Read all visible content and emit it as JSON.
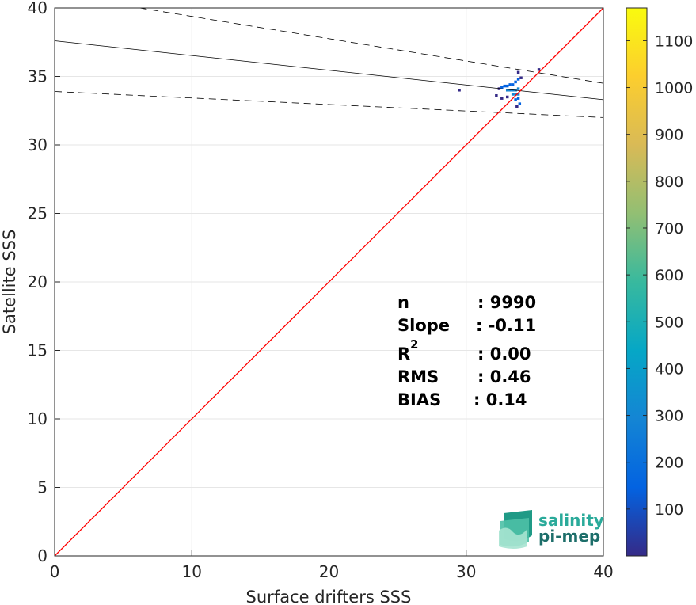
{
  "chart_data": {
    "type": "heatmap",
    "xlabel": "Surface drifters SSS",
    "ylabel": "Satellite SSS",
    "xlim": [
      0,
      40
    ],
    "ylim": [
      0,
      40
    ],
    "xticks": [
      "0",
      "10",
      "20",
      "30",
      "40"
    ],
    "yticks": [
      "0",
      "5",
      "10",
      "15",
      "20",
      "25",
      "30",
      "35",
      "40"
    ],
    "grid": true,
    "one_to_one_line": {
      "from": [
        0,
        0
      ],
      "to": [
        40,
        40
      ],
      "color": "#ff0000"
    },
    "regression_line": {
      "from": [
        0,
        37.6
      ],
      "to": [
        40,
        33.3
      ],
      "color": "#000000"
    },
    "confidence_bounds": [
      {
        "from": [
          6.2,
          40
        ],
        "to": [
          40,
          34.5
        ]
      },
      {
        "from": [
          0,
          33.9
        ],
        "to": [
          40,
          32.0
        ]
      }
    ],
    "density_cells": [
      {
        "x": 32.4,
        "y": 34.1,
        "count": 60
      },
      {
        "x": 32.6,
        "y": 34.2,
        "count": 80
      },
      {
        "x": 32.8,
        "y": 34.3,
        "count": 120
      },
      {
        "x": 33.0,
        "y": 34.3,
        "count": 150
      },
      {
        "x": 33.2,
        "y": 34.4,
        "count": 180
      },
      {
        "x": 33.4,
        "y": 34.4,
        "count": 200
      },
      {
        "x": 33.6,
        "y": 34.6,
        "count": 160
      },
      {
        "x": 33.8,
        "y": 34.8,
        "count": 120
      },
      {
        "x": 33.0,
        "y": 34.0,
        "count": 220
      },
      {
        "x": 33.2,
        "y": 34.0,
        "count": 260
      },
      {
        "x": 33.4,
        "y": 34.0,
        "count": 300
      },
      {
        "x": 33.6,
        "y": 34.0,
        "count": 280
      },
      {
        "x": 33.8,
        "y": 34.1,
        "count": 240
      },
      {
        "x": 33.4,
        "y": 33.7,
        "count": 250
      },
      {
        "x": 33.6,
        "y": 33.7,
        "count": 320
      },
      {
        "x": 33.8,
        "y": 33.7,
        "count": 260
      },
      {
        "x": 33.8,
        "y": 33.4,
        "count": 200
      },
      {
        "x": 33.6,
        "y": 33.3,
        "count": 150
      },
      {
        "x": 33.9,
        "y": 33.0,
        "count": 90
      },
      {
        "x": 33.7,
        "y": 32.8,
        "count": 40
      },
      {
        "x": 32.2,
        "y": 33.6,
        "count": 30
      },
      {
        "x": 32.6,
        "y": 33.4,
        "count": 40
      },
      {
        "x": 33.0,
        "y": 33.5,
        "count": 70
      },
      {
        "x": 33.8,
        "y": 35.3,
        "count": 20
      },
      {
        "x": 34.0,
        "y": 34.9,
        "count": 30
      },
      {
        "x": 35.3,
        "y": 35.5,
        "count": 10
      },
      {
        "x": 29.5,
        "y": 34.0,
        "count": 5
      }
    ],
    "colorbar": {
      "min": 0,
      "max": 1170,
      "ticks": [
        100,
        200,
        300,
        400,
        500,
        600,
        700,
        800,
        900,
        1000,
        1100
      ],
      "colormap": "parula"
    }
  },
  "stats": {
    "n_label": "n",
    "n_value": ": 9990",
    "slope_label": "Slope",
    "slope_value": ": -0.11",
    "r2_label": "R",
    "r2_sup": "2",
    "r2_value": ": 0.00",
    "rms_label": "RMS",
    "rms_value": ": 0.46",
    "bias_label": "BIAS",
    "bias_value": ": 0.14"
  },
  "logo": {
    "line1": "salinity",
    "line2": "pi-mep",
    "color1": "#2aaa9a",
    "color2": "#1d6e6a"
  }
}
